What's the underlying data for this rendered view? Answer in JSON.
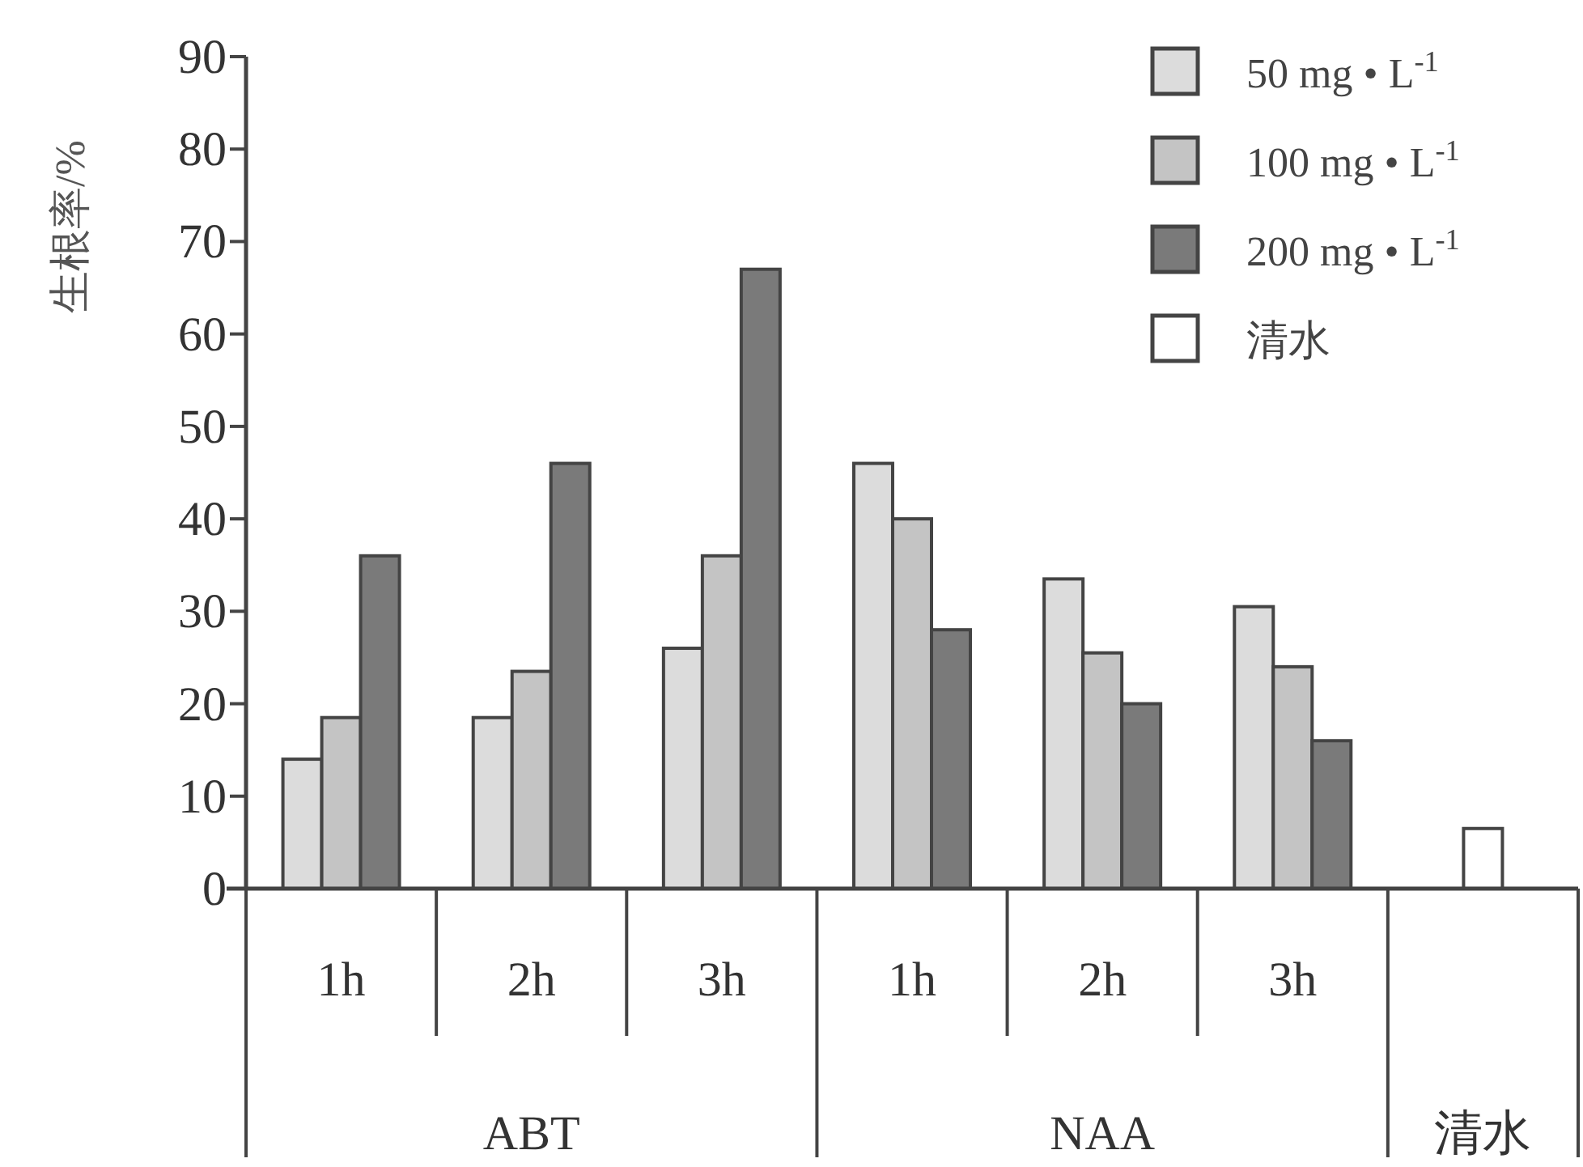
{
  "chart_data": {
    "type": "bar",
    "ylabel": "生根率/%",
    "categories": [
      "1h",
      "2h",
      "3h",
      "1h",
      "2h",
      "3h",
      null
    ],
    "series": [
      {
        "name": "50 mg • L$^{-1}$",
        "color": "#dcdcdc",
        "values": [
          14,
          18.5,
          26,
          46,
          33.5,
          30.5,
          null
        ]
      },
      {
        "name": "100 mg • L$^{-1}$",
        "color": "#c4c4c4",
        "values": [
          18.5,
          23.5,
          36,
          40,
          25.5,
          24,
          null
        ]
      },
      {
        "name": "200 mg • L$^{-1}$",
        "color": "#7a7a7a",
        "values": [
          36,
          46,
          67,
          28,
          20,
          16,
          null
        ]
      },
      {
        "name": "清水",
        "color": "#ffffff",
        "values": [
          null,
          null,
          null,
          null,
          null,
          null,
          6.5
        ]
      }
    ],
    "annotations": [
      "ABT",
      "NAA",
      "清水"
    ],
    "ylim": [
      0,
      90
    ],
    "yticks": [
      0,
      10,
      20,
      30,
      40,
      50,
      60,
      70,
      80,
      90
    ],
    "legend": "top right",
    "grid": false
  }
}
